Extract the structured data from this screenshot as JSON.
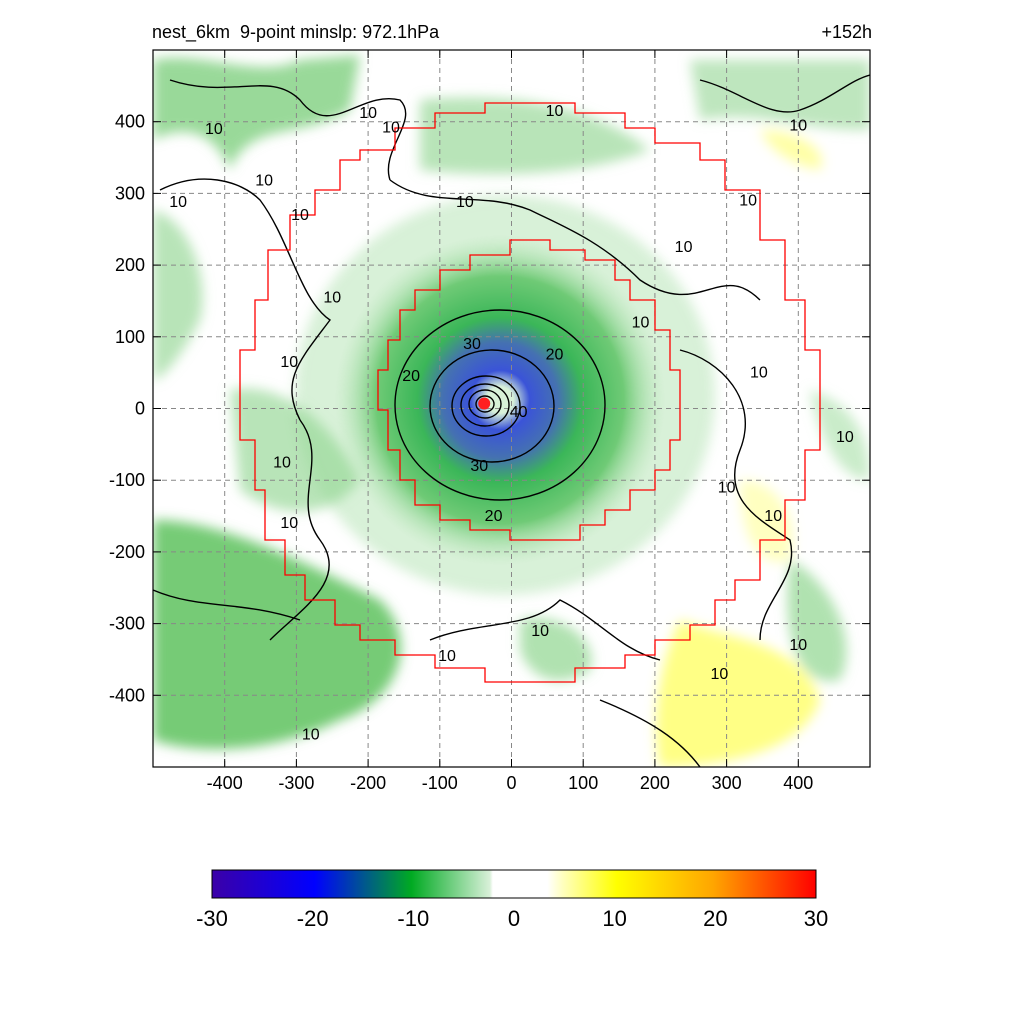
{
  "chart_data": {
    "type": "heatmap",
    "title_left": "nest_6km  9-point minslp: 972.1hPa",
    "title_right": "+152h",
    "xlabel": "",
    "ylabel": "",
    "xlim": [
      -500,
      500
    ],
    "ylim": [
      -500,
      500
    ],
    "x_ticks": [
      -400,
      -300,
      -200,
      -100,
      0,
      100,
      200,
      300,
      400
    ],
    "y_ticks": [
      400,
      300,
      200,
      100,
      0,
      -100,
      -200,
      -300,
      -400
    ],
    "grid": true,
    "colorbar": {
      "range": [
        -30,
        30
      ],
      "ticks": [
        -30,
        -20,
        -10,
        0,
        10,
        20,
        30
      ]
    },
    "storm_center": {
      "x": -38,
      "y": 7,
      "color": "#ff2020"
    },
    "contour_labels": [
      {
        "text": "10",
        "x": -415,
        "y": 390
      },
      {
        "text": "10",
        "x": -465,
        "y": 288
      },
      {
        "text": "10",
        "x": -345,
        "y": 318
      },
      {
        "text": "10",
        "x": -200,
        "y": 412
      },
      {
        "text": "10",
        "x": -168,
        "y": 392
      },
      {
        "text": "10",
        "x": -295,
        "y": 270
      },
      {
        "text": "10",
        "x": -250,
        "y": 155
      },
      {
        "text": "10",
        "x": -310,
        "y": 65
      },
      {
        "text": "10",
        "x": -320,
        "y": -75
      },
      {
        "text": "10",
        "x": -310,
        "y": -160
      },
      {
        "text": "10",
        "x": 60,
        "y": 415
      },
      {
        "text": "10",
        "x": -65,
        "y": 288
      },
      {
        "text": "10",
        "x": 400,
        "y": 395
      },
      {
        "text": "10",
        "x": 330,
        "y": 290
      },
      {
        "text": "10",
        "x": 240,
        "y": 225
      },
      {
        "text": "10",
        "x": 180,
        "y": 120
      },
      {
        "text": "10",
        "x": 345,
        "y": 50
      },
      {
        "text": "10",
        "x": 465,
        "y": -40
      },
      {
        "text": "10",
        "x": 300,
        "y": -110
      },
      {
        "text": "10",
        "x": 365,
        "y": -150
      },
      {
        "text": "10",
        "x": 400,
        "y": -330
      },
      {
        "text": "10",
        "x": 290,
        "y": -370
      },
      {
        "text": "10",
        "x": 40,
        "y": -310
      },
      {
        "text": "10",
        "x": -90,
        "y": -345
      },
      {
        "text": "10",
        "x": -280,
        "y": -455
      },
      {
        "text": "20",
        "x": 60,
        "y": 75
      },
      {
        "text": "20",
        "x": -140,
        "y": 45
      },
      {
        "text": "20",
        "x": -25,
        "y": -150
      },
      {
        "text": "30",
        "x": -55,
        "y": 90
      },
      {
        "text": "30",
        "x": -45,
        "y": -80
      },
      {
        "text": "40",
        "x": 10,
        "y": -5
      }
    ],
    "colors": {
      "neg_deep": "#3b00a8",
      "neg_blue": "#0000ff",
      "neg_green": "#00aa22",
      "neg_light": "#d8f0d8",
      "zero": "#ffffff",
      "pos_light": "#ffffc0",
      "pos_yellow": "#ffff00",
      "pos_orange": "#ffa500",
      "pos_red": "#ff0000",
      "domain_box": "#ff0000",
      "contour": "#000000",
      "grid": "#888888"
    }
  }
}
